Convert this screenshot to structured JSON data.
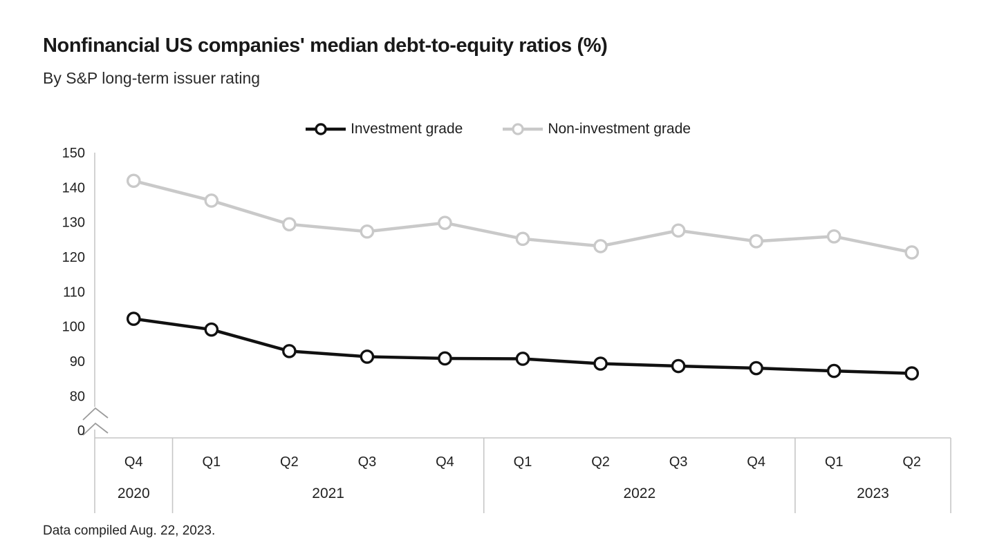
{
  "title": "Nonfinancial US companies' median debt-to-equity ratios (%)",
  "subtitle": "By S&P long-term issuer rating",
  "footer": "Data compiled Aug. 22, 2023.",
  "colors": {
    "investment": "#111111",
    "non_investment": "#c9c9c9",
    "axis": "#c6c6c6",
    "break_mark": "#9a9a9a",
    "text": "#1f1f1f",
    "background": "#ffffff"
  },
  "chart_data": {
    "type": "line",
    "title": "Nonfinancial US companies' median debt-to-equity ratios (%)",
    "subtitle": "By S&P long-term issuer rating",
    "legend_position": "top-center",
    "grid": false,
    "axis_break": true,
    "ylabel": "",
    "xlabel": "",
    "y_ticks": [
      150,
      140,
      130,
      120,
      110,
      100,
      90,
      80
    ],
    "y_base_tick": "0",
    "ylim_visible": [
      80,
      150
    ],
    "x_quarters": [
      "Q4",
      "Q1",
      "Q2",
      "Q3",
      "Q4",
      "Q1",
      "Q2",
      "Q3",
      "Q4",
      "Q1",
      "Q2"
    ],
    "year_groups": [
      {
        "label": "2020",
        "count": 1
      },
      {
        "label": "2021",
        "count": 4
      },
      {
        "label": "2022",
        "count": 4
      },
      {
        "label": "2023",
        "count": 2
      }
    ],
    "series": [
      {
        "name": "Non-investment grade",
        "color": "#c9c9c9",
        "values": [
          141.9,
          136.2,
          129.4,
          127.3,
          129.8,
          125.2,
          123.1,
          127.6,
          124.5,
          125.9,
          121.3
        ]
      },
      {
        "name": "Investment grade",
        "color": "#111111",
        "values": [
          102.2,
          99.1,
          92.9,
          91.3,
          90.8,
          90.7,
          89.3,
          88.6,
          88.0,
          87.2,
          86.5
        ]
      }
    ]
  }
}
